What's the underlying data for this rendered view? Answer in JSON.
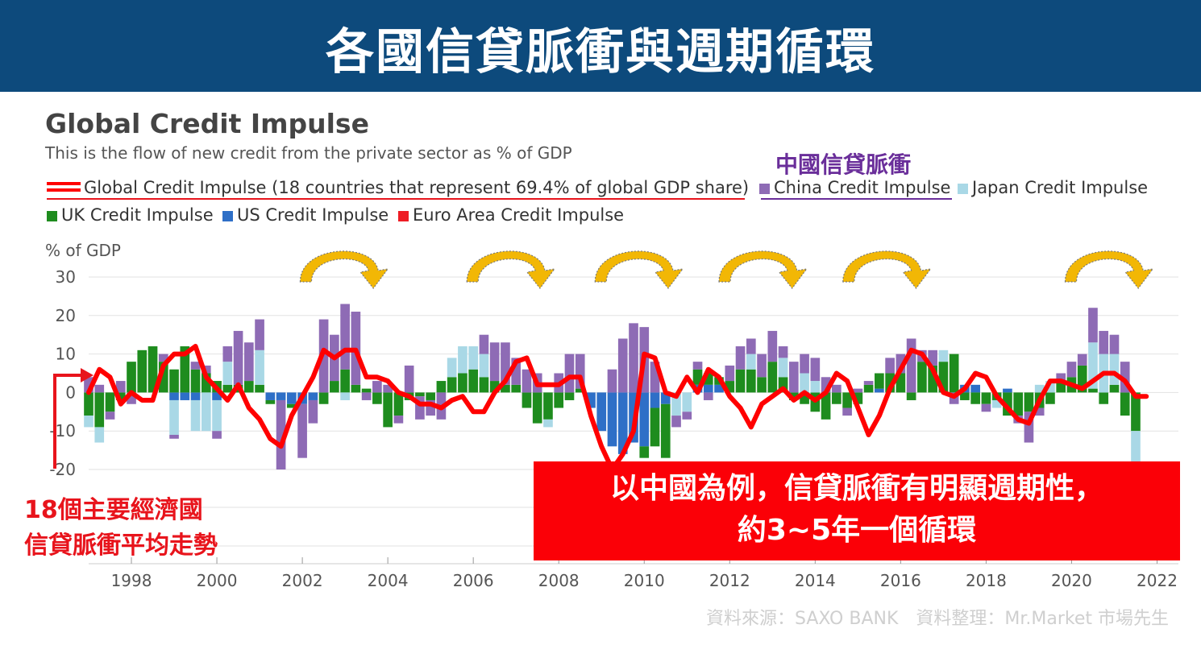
{
  "banner": {
    "title": "各國信貸脈衝與週期循環"
  },
  "annotations": {
    "china_note": "中國信貸脈衝",
    "left_note_line1": "18個主要經濟國",
    "left_note_line2": "信貸脈衝平均走勢",
    "callout_line1": "以中國為例，信貸脈衝有明顯週期性，",
    "callout_line2": "約3~5年一個循環",
    "source": "資料來源：SAXO BANK　資料整理：Mr.Market 市場先生"
  },
  "colors": {
    "banner": "#0d4a7c",
    "global": "#ff0000",
    "china": "#8e6bb5",
    "japan": "#a9d8e6",
    "uk": "#1e8c1e",
    "us": "#2e6fc7",
    "euro": "#ee1c24",
    "arrow": "#f2b705",
    "callout": "#fb0007"
  },
  "chart_data": {
    "type": "bar",
    "title": "Global Credit Impulse",
    "subtitle": "This is the flow of new credit from the private sector as % of GDP",
    "ylabel": "% of GDP",
    "ylim": [
      -20,
      30
    ],
    "yticks": [
      30,
      20,
      10,
      0,
      -10,
      -20
    ],
    "xlim": [
      1997,
      2022.5
    ],
    "xticks": [
      1998,
      2000,
      2002,
      2004,
      2006,
      2008,
      2010,
      2012,
      2014,
      2016,
      2018,
      2020,
      2022
    ],
    "legend": [
      {
        "key": "global",
        "label": "Global Credit Impulse (18 countries that represent 69.4% of global GDP share)"
      },
      {
        "key": "china",
        "label": "China Credit Impulse"
      },
      {
        "key": "japan",
        "label": "Japan Credit Impulse"
      },
      {
        "key": "uk",
        "label": "UK Credit Impulse"
      },
      {
        "key": "us",
        "label": "US Credit Impulse"
      },
      {
        "key": "euro",
        "label": "Euro Area Credit Impulse"
      }
    ],
    "bars": [
      {
        "x": 1997.0,
        "uk": -6,
        "japan": -3,
        "china": 4
      },
      {
        "x": 1997.25,
        "uk": -9,
        "japan": -4,
        "china": 2
      },
      {
        "x": 1997.5,
        "uk": -5,
        "china": -2
      },
      {
        "x": 1997.75,
        "uk": -2,
        "china": 3
      },
      {
        "x": 1998.0,
        "uk": 8,
        "china": -3
      },
      {
        "x": 1998.25,
        "uk": 11
      },
      {
        "x": 1998.5,
        "uk": 12
      },
      {
        "x": 1998.75,
        "uk": 8,
        "china": 2
      },
      {
        "x": 1999.0,
        "uk": 6,
        "china": -1,
        "us": -2,
        "japan": -9
      },
      {
        "x": 1999.25,
        "uk": 12,
        "us": -2
      },
      {
        "x": 1999.5,
        "uk": 6,
        "us": -2,
        "japan": -8,
        "china": 2
      },
      {
        "x": 1999.75,
        "uk": 5,
        "japan": -10,
        "china": 2
      },
      {
        "x": 2000.0,
        "uk": 3,
        "us": -2,
        "japan": -8,
        "china": -2
      },
      {
        "x": 2000.25,
        "uk": 2,
        "japan": 6,
        "china": 4
      },
      {
        "x": 2000.5,
        "uk": 2,
        "china": 14
      },
      {
        "x": 2000.75,
        "uk": 3,
        "china": 10
      },
      {
        "x": 2001.0,
        "uk": 2,
        "japan": 9,
        "china": 8
      },
      {
        "x": 2001.25,
        "us": -2,
        "uk": -1
      },
      {
        "x": 2001.5,
        "us": -2,
        "china": -18
      },
      {
        "x": 2001.75,
        "us": -3,
        "uk": -1
      },
      {
        "x": 2002.0,
        "us": -3,
        "china": -14
      },
      {
        "x": 2002.25,
        "us": -2,
        "china": -6
      },
      {
        "x": 2002.5,
        "uk": -3,
        "china": 19
      },
      {
        "x": 2002.75,
        "uk": 3,
        "china": 12
      },
      {
        "x": 2003.0,
        "uk": 6,
        "china": 17,
        "japan": -2
      },
      {
        "x": 2003.25,
        "uk": 2,
        "china": 19
      },
      {
        "x": 2003.5,
        "uk": 1,
        "china": -2
      },
      {
        "x": 2003.75,
        "uk": -3,
        "china": 3
      },
      {
        "x": 2004.0,
        "uk": -9,
        "china": 2
      },
      {
        "x": 2004.25,
        "uk": -6,
        "china": -2
      },
      {
        "x": 2004.5,
        "uk": -2,
        "china": 7
      },
      {
        "x": 2004.75,
        "uk": -1,
        "china": -6
      },
      {
        "x": 2005.0,
        "uk": -2,
        "china": -4
      },
      {
        "x": 2005.25,
        "uk": 3,
        "china": -7
      },
      {
        "x": 2005.5,
        "uk": 4,
        "japan": 5
      },
      {
        "x": 2005.75,
        "uk": 5,
        "japan": 7
      },
      {
        "x": 2006.0,
        "uk": 6,
        "japan": 6
      },
      {
        "x": 2006.25,
        "uk": 4,
        "china": 5,
        "japan": 6
      },
      {
        "x": 2006.5,
        "uk": 3,
        "china": 10
      },
      {
        "x": 2006.75,
        "uk": 2,
        "china": 11
      },
      {
        "x": 2007.0,
        "uk": 2,
        "china": 7
      },
      {
        "x": 2007.25,
        "uk": -4,
        "china": 6
      },
      {
        "x": 2007.5,
        "uk": -8,
        "china": 5
      },
      {
        "x": 2007.75,
        "uk": -7,
        "japan": -2
      },
      {
        "x": 2008.0,
        "uk": -4,
        "china": 5
      },
      {
        "x": 2008.25,
        "uk": -2,
        "china": 10
      },
      {
        "x": 2008.5,
        "uk": 1,
        "china": 9
      },
      {
        "x": 2008.75,
        "us": -4
      },
      {
        "x": 2009.0,
        "us": -10
      },
      {
        "x": 2009.25,
        "us": -14,
        "china": 6
      },
      {
        "x": 2009.5,
        "us": -16,
        "china": 14
      },
      {
        "x": 2009.75,
        "us": -13,
        "china": 18
      },
      {
        "x": 2010.0,
        "us": -14,
        "uk": -3,
        "china": 17
      },
      {
        "x": 2010.25,
        "uk": -10,
        "us": -4,
        "china": 8
      },
      {
        "x": 2010.5,
        "uk": -14,
        "us": -3
      },
      {
        "x": 2010.75,
        "japan": -6,
        "china": -3
      },
      {
        "x": 2011.0,
        "japan": -5,
        "china": -2
      },
      {
        "x": 2011.25,
        "uk": 4,
        "us": 2,
        "china": 2
      },
      {
        "x": 2011.5,
        "uk": 3,
        "us": 2,
        "china": -2
      },
      {
        "x": 2011.75,
        "uk": 2,
        "us": 2
      },
      {
        "x": 2012.0,
        "uk": 3,
        "china": 4
      },
      {
        "x": 2012.25,
        "uk": 6,
        "china": 6
      },
      {
        "x": 2012.5,
        "uk": 6,
        "japan": 4,
        "china": 4
      },
      {
        "x": 2012.75,
        "uk": 4,
        "china": 6
      },
      {
        "x": 2013.0,
        "uk": 8,
        "china": 8
      },
      {
        "x": 2013.25,
        "uk": 4,
        "japan": 5,
        "china": 3
      },
      {
        "x": 2013.5,
        "uk": -2,
        "china": 8
      },
      {
        "x": 2013.75,
        "uk": -3,
        "japan": 5,
        "china": 5
      },
      {
        "x": 2014.0,
        "uk": -5,
        "japan": 3,
        "china": 6
      },
      {
        "x": 2014.25,
        "uk": -7,
        "china": 4
      },
      {
        "x": 2014.5,
        "uk": -3,
        "china": 2
      },
      {
        "x": 2014.75,
        "uk": -4,
        "china": -2
      },
      {
        "x": 2015.0,
        "uk": -3,
        "china": 1
      },
      {
        "x": 2015.25,
        "uk": 2,
        "china": 1
      },
      {
        "x": 2015.5,
        "uk": 4,
        "us": 1
      },
      {
        "x": 2015.75,
        "uk": 5,
        "china": 4
      },
      {
        "x": 2016.0,
        "uk": 5,
        "china": 5
      },
      {
        "x": 2016.25,
        "uk": -2,
        "china": 14
      },
      {
        "x": 2016.5,
        "uk": 8,
        "china": 3
      },
      {
        "x": 2016.75,
        "uk": 7,
        "china": 4
      },
      {
        "x": 2017.0,
        "uk": 8,
        "japan": 3
      },
      {
        "x": 2017.25,
        "uk": 10,
        "china": -3
      },
      {
        "x": 2017.5,
        "uk": -2,
        "us": 2
      },
      {
        "x": 2017.75,
        "uk": -3,
        "us": 2
      },
      {
        "x": 2018.0,
        "uk": -3,
        "china": -2
      },
      {
        "x": 2018.25,
        "uk": -2,
        "japan": -2
      },
      {
        "x": 2018.5,
        "uk": -6,
        "us": 1
      },
      {
        "x": 2018.75,
        "uk": -6,
        "china": -2
      },
      {
        "x": 2019.0,
        "uk": -5,
        "china": -8
      },
      {
        "x": 2019.25,
        "uk": -4,
        "japan": 2,
        "china": -2
      },
      {
        "x": 2019.5,
        "uk": -3,
        "japan": 3
      },
      {
        "x": 2019.75,
        "uk": 3,
        "china": 2
      },
      {
        "x": 2020.0,
        "uk": 4,
        "china": 4
      },
      {
        "x": 2020.25,
        "uk": 7,
        "china": 3
      },
      {
        "x": 2020.5,
        "uk": 1,
        "japan": 12,
        "china": 9
      },
      {
        "x": 2020.75,
        "uk": -3,
        "japan": 10,
        "china": 6
      },
      {
        "x": 2021.0,
        "uk": 2,
        "japan": 8,
        "china": 5
      },
      {
        "x": 2021.25,
        "uk": -6,
        "china": 8
      },
      {
        "x": 2021.5,
        "uk": -10,
        "japan": -12
      }
    ],
    "global_line": [
      {
        "x": 1997.0,
        "y": 0
      },
      {
        "x": 1997.25,
        "y": 6
      },
      {
        "x": 1997.5,
        "y": 4
      },
      {
        "x": 1997.75,
        "y": -3
      },
      {
        "x": 1998.0,
        "y": 0
      },
      {
        "x": 1998.25,
        "y": -2
      },
      {
        "x": 1998.5,
        "y": -2
      },
      {
        "x": 1998.75,
        "y": 7
      },
      {
        "x": 1999.0,
        "y": 10
      },
      {
        "x": 1999.25,
        "y": 10
      },
      {
        "x": 1999.5,
        "y": 12
      },
      {
        "x": 1999.75,
        "y": 4
      },
      {
        "x": 2000.0,
        "y": 1
      },
      {
        "x": 2000.25,
        "y": -2
      },
      {
        "x": 2000.5,
        "y": 2
      },
      {
        "x": 2000.75,
        "y": -4
      },
      {
        "x": 2001.0,
        "y": -7
      },
      {
        "x": 2001.25,
        "y": -12
      },
      {
        "x": 2001.5,
        "y": -14
      },
      {
        "x": 2001.75,
        "y": -6
      },
      {
        "x": 2002.0,
        "y": -1
      },
      {
        "x": 2002.25,
        "y": 4
      },
      {
        "x": 2002.5,
        "y": 11
      },
      {
        "x": 2002.75,
        "y": 9
      },
      {
        "x": 2003.0,
        "y": 11
      },
      {
        "x": 2003.25,
        "y": 11
      },
      {
        "x": 2003.5,
        "y": 4
      },
      {
        "x": 2003.75,
        "y": 4
      },
      {
        "x": 2004.0,
        "y": 3
      },
      {
        "x": 2004.25,
        "y": 0
      },
      {
        "x": 2004.5,
        "y": -1
      },
      {
        "x": 2004.75,
        "y": -3
      },
      {
        "x": 2005.0,
        "y": -3
      },
      {
        "x": 2005.25,
        "y": -4
      },
      {
        "x": 2005.5,
        "y": -2
      },
      {
        "x": 2005.75,
        "y": -1
      },
      {
        "x": 2006.0,
        "y": -5
      },
      {
        "x": 2006.25,
        "y": -5
      },
      {
        "x": 2006.5,
        "y": 0
      },
      {
        "x": 2006.75,
        "y": 3
      },
      {
        "x": 2007.0,
        "y": 8
      },
      {
        "x": 2007.25,
        "y": 9
      },
      {
        "x": 2007.5,
        "y": 2
      },
      {
        "x": 2007.75,
        "y": 2
      },
      {
        "x": 2008.0,
        "y": 2
      },
      {
        "x": 2008.25,
        "y": 4
      },
      {
        "x": 2008.5,
        "y": 4
      },
      {
        "x": 2008.75,
        "y": -6
      },
      {
        "x": 2009.0,
        "y": -14
      },
      {
        "x": 2009.25,
        "y": -20
      },
      {
        "x": 2009.5,
        "y": -16
      },
      {
        "x": 2009.75,
        "y": -10
      },
      {
        "x": 2010.0,
        "y": 10
      },
      {
        "x": 2010.25,
        "y": 9
      },
      {
        "x": 2010.5,
        "y": 0
      },
      {
        "x": 2010.75,
        "y": -1
      },
      {
        "x": 2011.0,
        "y": 4
      },
      {
        "x": 2011.25,
        "y": 0
      },
      {
        "x": 2011.5,
        "y": 6
      },
      {
        "x": 2011.75,
        "y": 4
      },
      {
        "x": 2012.0,
        "y": -1
      },
      {
        "x": 2012.25,
        "y": -4
      },
      {
        "x": 2012.5,
        "y": -9
      },
      {
        "x": 2012.75,
        "y": -3
      },
      {
        "x": 2013.0,
        "y": -1
      },
      {
        "x": 2013.25,
        "y": 1
      },
      {
        "x": 2013.5,
        "y": -2
      },
      {
        "x": 2013.75,
        "y": 0
      },
      {
        "x": 2014.0,
        "y": -2
      },
      {
        "x": 2014.25,
        "y": 0
      },
      {
        "x": 2014.5,
        "y": 5
      },
      {
        "x": 2014.75,
        "y": 3
      },
      {
        "x": 2015.0,
        "y": -4
      },
      {
        "x": 2015.25,
        "y": -11
      },
      {
        "x": 2015.5,
        "y": -6
      },
      {
        "x": 2015.75,
        "y": 1
      },
      {
        "x": 2016.0,
        "y": 6
      },
      {
        "x": 2016.25,
        "y": 11
      },
      {
        "x": 2016.5,
        "y": 10
      },
      {
        "x": 2016.75,
        "y": 6
      },
      {
        "x": 2017.0,
        "y": 0
      },
      {
        "x": 2017.25,
        "y": -1
      },
      {
        "x": 2017.5,
        "y": 1
      },
      {
        "x": 2017.75,
        "y": 5
      },
      {
        "x": 2018.0,
        "y": 4
      },
      {
        "x": 2018.25,
        "y": -1
      },
      {
        "x": 2018.5,
        "y": -4
      },
      {
        "x": 2018.75,
        "y": -7
      },
      {
        "x": 2019.0,
        "y": -8
      },
      {
        "x": 2019.25,
        "y": -2
      },
      {
        "x": 2019.5,
        "y": 3
      },
      {
        "x": 2019.75,
        "y": 3
      },
      {
        "x": 2020.0,
        "y": 2
      },
      {
        "x": 2020.25,
        "y": 1
      },
      {
        "x": 2020.5,
        "y": 3
      },
      {
        "x": 2020.75,
        "y": 5
      },
      {
        "x": 2021.0,
        "y": 5
      },
      {
        "x": 2021.25,
        "y": 3
      },
      {
        "x": 2021.5,
        "y": -1
      },
      {
        "x": 2021.75,
        "y": -1
      }
    ],
    "cycle_arrows": [
      2002.9,
      2006.8,
      2009.8,
      2012.7,
      2015.6,
      2020.8
    ]
  }
}
